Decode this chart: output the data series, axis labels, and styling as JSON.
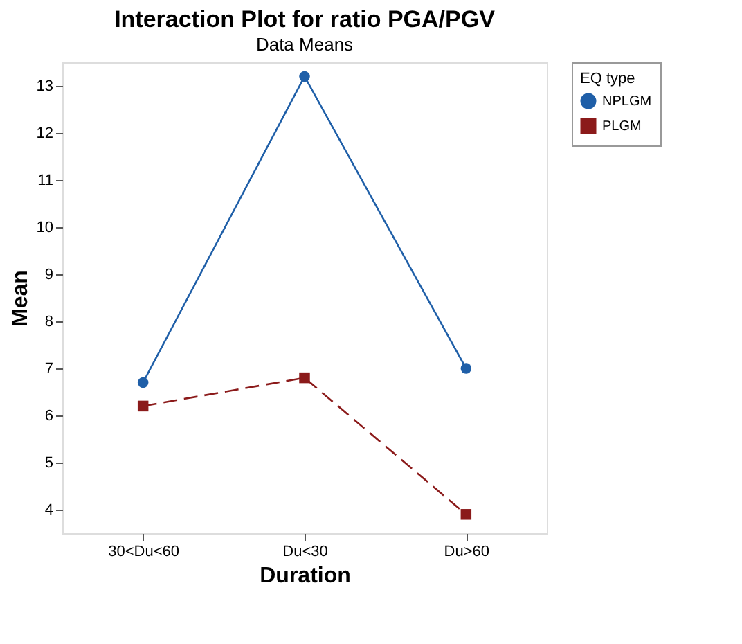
{
  "chart_data": {
    "type": "line",
    "title": "Interaction Plot for ratio PGA/PGV",
    "subtitle": "Data Means",
    "xlabel": "Duration",
    "ylabel": "Mean",
    "legend_title": "EQ type",
    "legend": "right",
    "categories": [
      "30<Du<60",
      "Du<30",
      "Du>60"
    ],
    "series": [
      {
        "name": "NPLGM",
        "color": "#1f5fa8",
        "values": [
          6.7,
          13.2,
          7.0
        ],
        "marker": "circle",
        "line_style": "solid"
      },
      {
        "name": "PLGM",
        "color": "#8b1a1a",
        "values": [
          6.2,
          6.8,
          3.9
        ],
        "marker": "square",
        "line_style": "dashed"
      }
    ],
    "ylim": [
      3.5,
      13.5
    ],
    "yticks": [
      4,
      5,
      6,
      7,
      8,
      9,
      10,
      11,
      12,
      13
    ],
    "grid": false
  }
}
